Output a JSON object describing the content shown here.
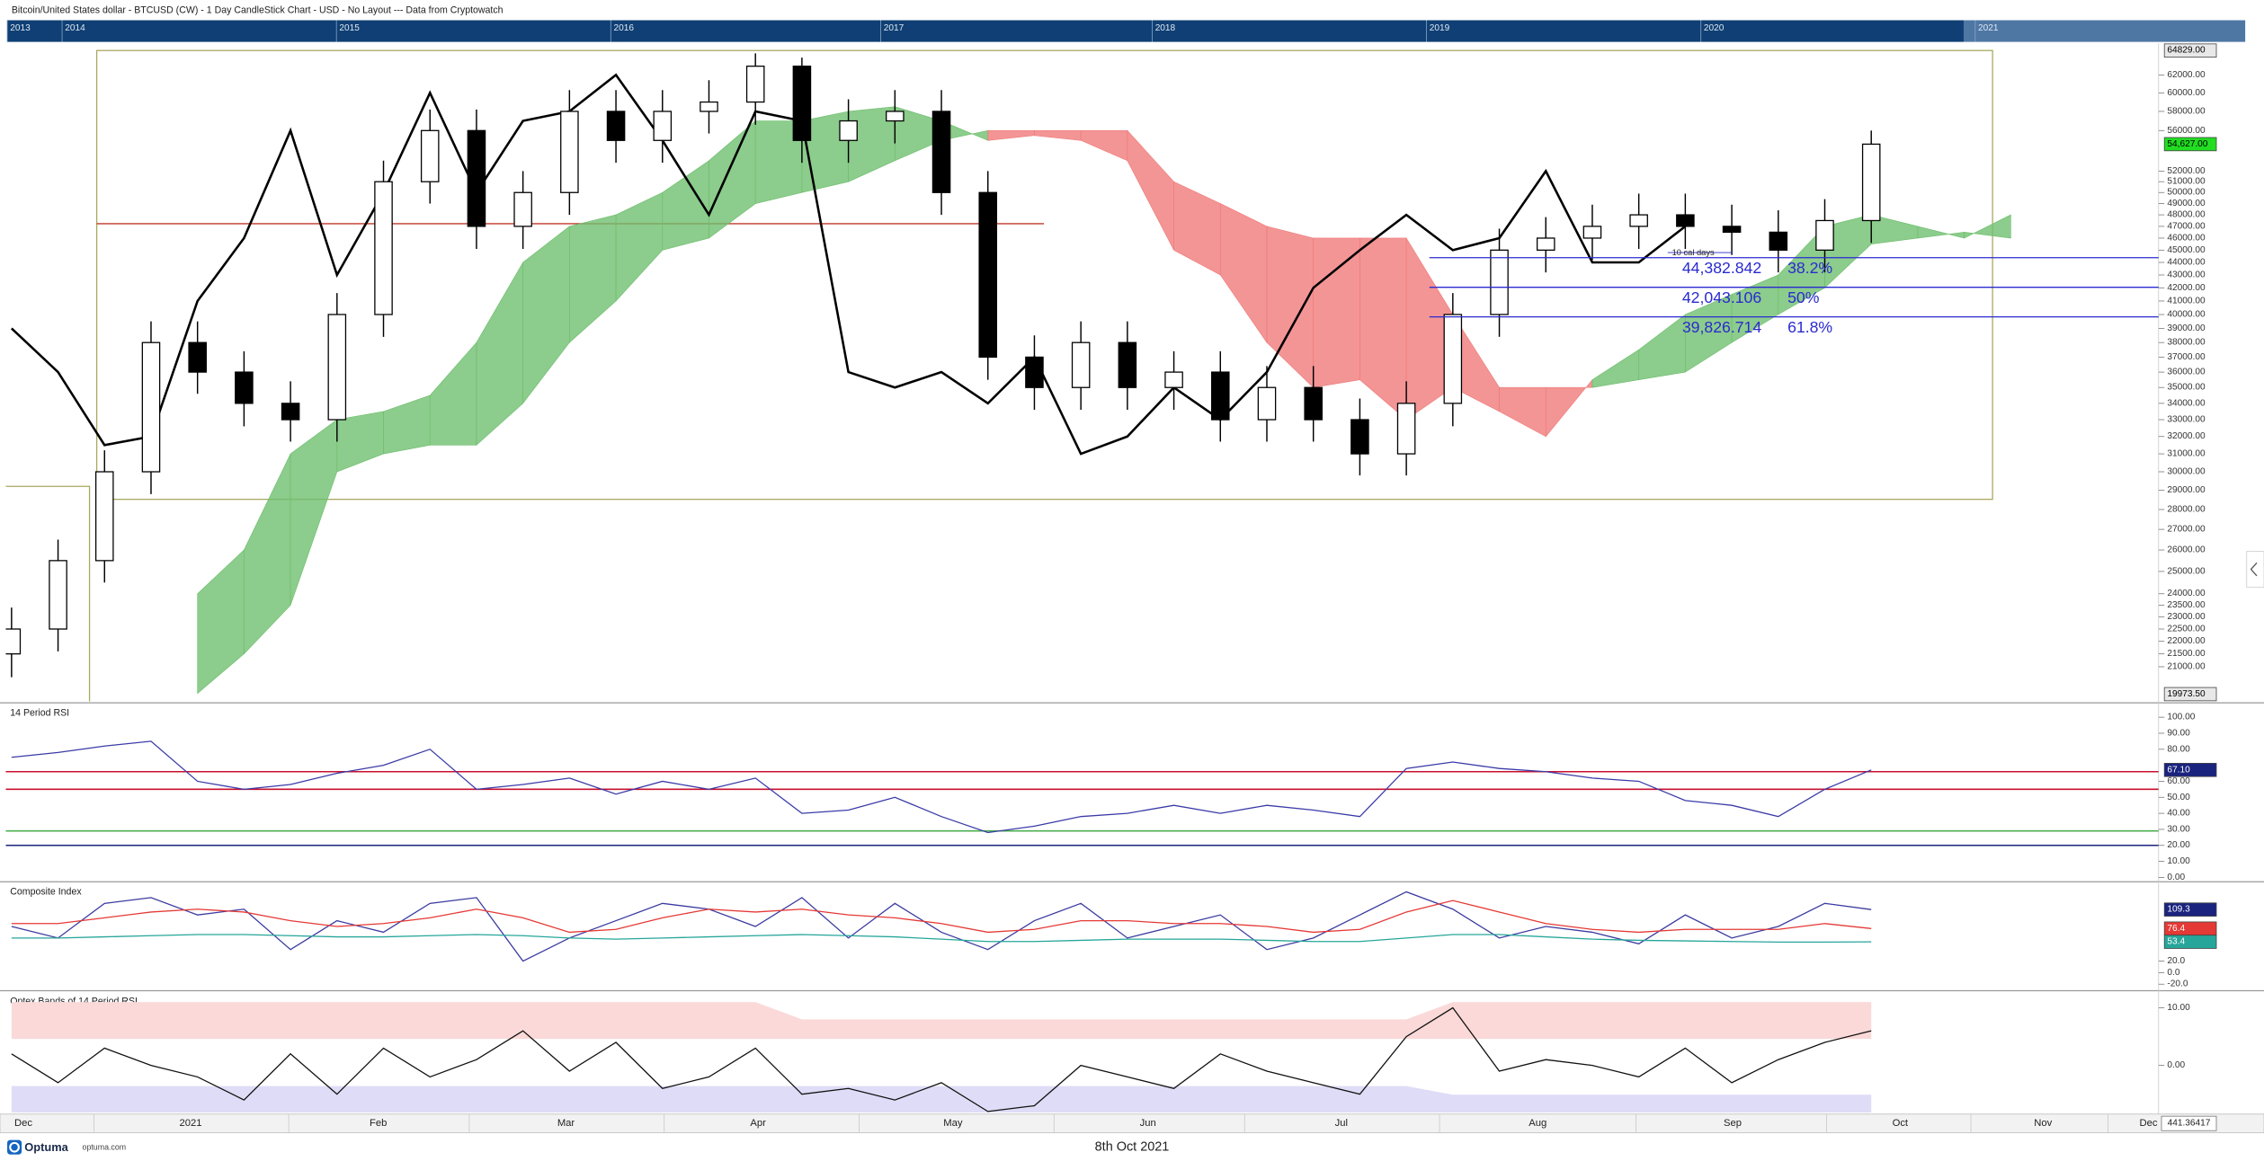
{
  "header": {
    "title": "Bitcoin/United States dollar - BTCUSD (CW) - 1 Day CandleStick Chart - USD - No Layout --- Data from Cryptowatch",
    "navigator_years": [
      "2013",
      "2014",
      "2015",
      "2016",
      "2017",
      "2018",
      "2019",
      "2020",
      "2021"
    ]
  },
  "chart_data": [
    {
      "type": "candlestick",
      "log_scale": true,
      "grid": false,
      "ylim": [
        19973.5,
        64829
      ],
      "yticks": [
        {
          "value": 62000,
          "label": "62000.00"
        },
        {
          "value": 60000,
          "label": "60000.00"
        },
        {
          "value": 58000,
          "label": "58000.00"
        },
        {
          "value": 56000,
          "label": "56000.00"
        },
        {
          "value": 52000,
          "label": "52000.00"
        },
        {
          "value": 51000,
          "label": "51000.00"
        },
        {
          "value": 50000,
          "label": "50000.00"
        },
        {
          "value": 49000,
          "label": "49000.00"
        },
        {
          "value": 48000,
          "label": "48000.00"
        },
        {
          "value": 47000,
          "label": "47000.00"
        },
        {
          "value": 46000,
          "label": "46000.00"
        },
        {
          "value": 45000,
          "label": "45000.00"
        },
        {
          "value": 44000,
          "label": "44000.00"
        },
        {
          "value": 43000,
          "label": "43000.00"
        },
        {
          "value": 42000,
          "label": "42000.00"
        },
        {
          "value": 41000,
          "label": "41000.00"
        },
        {
          "value": 40000,
          "label": "40000.00"
        },
        {
          "value": 39000,
          "label": "39000.00"
        },
        {
          "value": 38000,
          "label": "38000.00"
        },
        {
          "value": 37000,
          "label": "37000.00"
        },
        {
          "value": 36000,
          "label": "36000.00"
        },
        {
          "value": 35000,
          "label": "35000.00"
        },
        {
          "value": 34000,
          "label": "34000.00"
        },
        {
          "value": 33000,
          "label": "33000.00"
        },
        {
          "value": 32000,
          "label": "32000.00"
        },
        {
          "value": 31000,
          "label": "31000.00"
        },
        {
          "value": 30000,
          "label": "30000.00"
        },
        {
          "value": 29000,
          "label": "29000.00"
        },
        {
          "value": 28000,
          "label": "28000.00"
        },
        {
          "value": 27000,
          "label": "27000.00"
        },
        {
          "value": 26000,
          "label": "26000.00"
        },
        {
          "value": 25000,
          "label": "25000.00"
        },
        {
          "value": 24000,
          "label": "24000.00"
        },
        {
          "value": 23500,
          "label": "23500.00"
        },
        {
          "value": 23000,
          "label": "23000.00"
        },
        {
          "value": 22500,
          "label": "22500.00"
        },
        {
          "value": 22000,
          "label": "22000.00"
        },
        {
          "value": 21500,
          "label": "21500.00"
        },
        {
          "value": 21000,
          "label": "21000.00"
        }
      ],
      "price_labels": [
        {
          "value": 64829,
          "label": "64829.00",
          "color": "#e8e8e8",
          "text_color": "#000000"
        },
        {
          "value": 54627,
          "label": "54,627.00",
          "color": "#22dd22",
          "text_color": "#000000"
        },
        {
          "value": 19973.5,
          "label": "19973.50",
          "color": "#e8e8e8",
          "text_color": "#000000"
        }
      ],
      "open": [
        21500,
        22500,
        25500,
        30000,
        38000,
        36000,
        34000,
        33000,
        40000,
        51000,
        56000,
        47000,
        50000,
        58000,
        55000,
        58000,
        59000,
        63000,
        55000,
        57000,
        58000,
        50000,
        37000,
        35000,
        38000,
        35000,
        36000,
        33000,
        35000,
        33000,
        31000,
        34000,
        40000,
        45000,
        46000,
        47000,
        48000,
        47000,
        46500,
        45000,
        47500
      ],
      "high": [
        23400,
        26500,
        31200,
        39500,
        39500,
        37400,
        35400,
        41600,
        53000,
        58200,
        58200,
        52000,
        60300,
        60300,
        60300,
        61400,
        64500,
        64000,
        59300,
        60300,
        60300,
        52000,
        38500,
        39500,
        39500,
        37400,
        37400,
        36400,
        36400,
        34300,
        35400,
        41600,
        46800,
        47800,
        48900,
        49900,
        49900,
        48900,
        48400,
        49400,
        56000
      ],
      "low": [
        20600,
        21600,
        24500,
        28800,
        34600,
        32600,
        31700,
        31700,
        38400,
        49000,
        45100,
        45100,
        48000,
        52800,
        52800,
        55700,
        56600,
        52800,
        52800,
        54700,
        48000,
        35500,
        33600,
        33600,
        33600,
        33600,
        31700,
        31700,
        31700,
        29800,
        29800,
        32600,
        38400,
        43200,
        44200,
        45100,
        45100,
        44600,
        43200,
        43200,
        45600
      ],
      "close": [
        22500,
        25500,
        30000,
        38000,
        36000,
        34000,
        33000,
        40000,
        51000,
        56000,
        47000,
        50000,
        58000,
        55000,
        58000,
        59000,
        63000,
        55000,
        57000,
        58000,
        50000,
        37000,
        35000,
        38000,
        35000,
        36000,
        33000,
        35000,
        33000,
        31000,
        34000,
        40000,
        45000,
        46000,
        47000,
        48000,
        47000,
        46500,
        45000,
        47500,
        54627
      ],
      "up_color": "#ffffff",
      "down_color": "#000000",
      "lagging_line": {
        "color": "#000000",
        "values": [
          39000,
          36000,
          31500,
          32000,
          41000,
          46000,
          56000,
          43000,
          50000,
          60000,
          50000,
          57000,
          58000,
          62000,
          55000,
          48000,
          58000,
          57000,
          36000,
          35000,
          36000,
          34000,
          37000,
          31000,
          32000,
          35000,
          33000,
          36000,
          42000,
          45000,
          48000,
          45000,
          46000,
          52000,
          44000,
          44000,
          47000
        ]
      },
      "cloud": {
        "up_color": "#6fbf6f",
        "down_color": "#f07a7a",
        "span_a": [
          null,
          null,
          null,
          null,
          24000,
          26000,
          31000,
          33000,
          33500,
          34500,
          38000,
          44000,
          47000,
          48000,
          50000,
          53000,
          57000,
          57000,
          58000,
          58500,
          57000,
          55000,
          55500,
          55000,
          53000,
          45000,
          43000,
          38000,
          35000,
          35500,
          33000,
          35000,
          33500,
          32000,
          35500,
          37500,
          40000,
          41500,
          43000,
          47000,
          48000,
          47000,
          46000,
          48000
        ],
        "span_b": [
          null,
          null,
          null,
          null,
          20000,
          21500,
          23500,
          30000,
          31000,
          31500,
          31500,
          34000,
          38000,
          41000,
          45000,
          46000,
          49000,
          50000,
          51000,
          53000,
          55000,
          56000,
          56000,
          56000,
          56000,
          51000,
          49000,
          47000,
          46000,
          46000,
          46000,
          40000,
          35000,
          35000,
          35000,
          35500,
          36000,
          38000,
          40000,
          42000,
          45500,
          46000,
          46500,
          46000
        ]
      },
      "fib_levels": [
        {
          "value": 44382.842,
          "label": "44,382.842",
          "ratio": "38.2%"
        },
        {
          "value": 42043.106,
          "label": "42,043.106",
          "ratio": "50%"
        },
        {
          "value": 39826.714,
          "label": "39,826.714",
          "ratio": "61.8%"
        }
      ],
      "fib_color": "#2a2ad0",
      "annotation": "10 cal days"
    },
    {
      "type": "line",
      "title": "14 Period RSI",
      "grid": false,
      "ylim": [
        -1.8,
        108.1
      ],
      "yticks": [
        {
          "value": 100,
          "label": "100.00"
        },
        {
          "value": 90,
          "label": "90.00"
        },
        {
          "value": 80,
          "label": "80.00"
        },
        {
          "value": 60,
          "label": "60.00"
        },
        {
          "value": 50,
          "label": "50.00"
        },
        {
          "value": 40,
          "label": "40.00"
        },
        {
          "value": 30,
          "label": "30.00"
        },
        {
          "value": 20,
          "label": "20.00"
        },
        {
          "value": 10,
          "label": "10.00"
        },
        {
          "value": 0,
          "label": "0.00"
        }
      ],
      "levels": [
        {
          "value": 66,
          "color": "#c8102e"
        },
        {
          "value": 55,
          "color": "#c8102e"
        },
        {
          "value": 29,
          "color": "#4caf50"
        },
        {
          "value": 20,
          "color": "#1a237e"
        }
      ],
      "series": [
        {
          "color": "#3b3ba8",
          "values": [
            75,
            78,
            82,
            85,
            60,
            55,
            58,
            65,
            70,
            80,
            55,
            58,
            62,
            52,
            60,
            55,
            62,
            40,
            42,
            50,
            38,
            28,
            32,
            38,
            40,
            45,
            40,
            45,
            42,
            38,
            68,
            72,
            68,
            66,
            62,
            60,
            48,
            45,
            38,
            55,
            67.1
          ]
        }
      ],
      "price_labels": [
        {
          "value": 67.1,
          "label": "67.10",
          "color": "#1a237e",
          "text_color": "#ffffff"
        }
      ]
    },
    {
      "type": "line",
      "title": "Composite Index",
      "grid": false,
      "ylim": [
        -27.5,
        155
      ],
      "yticks": [
        {
          "value": 20,
          "label": "20.0"
        },
        {
          "value": 0,
          "label": "0.0"
        },
        {
          "value": -20,
          "label": "-20.0"
        }
      ],
      "series": [
        {
          "color": "#3a3aa0",
          "values": [
            80,
            60,
            120,
            130,
            100,
            110,
            40,
            90,
            70,
            120,
            130,
            20,
            60,
            90,
            120,
            110,
            80,
            130,
            60,
            120,
            70,
            40,
            90,
            120,
            60,
            80,
            100,
            40,
            60,
            100,
            140,
            110,
            60,
            80,
            70,
            50,
            100,
            60,
            80,
            120,
            109.3
          ]
        },
        {
          "color": "#e53935",
          "values": [
            85,
            85,
            95,
            105,
            110,
            105,
            90,
            80,
            85,
            95,
            110,
            95,
            70,
            75,
            95,
            110,
            105,
            110,
            100,
            95,
            85,
            70,
            75,
            90,
            90,
            85,
            85,
            80,
            70,
            75,
            105,
            125,
            105,
            85,
            75,
            70,
            75,
            75,
            75,
            85,
            76.4
          ]
        },
        {
          "color": "#26a69a",
          "values": [
            60,
            60,
            62,
            64,
            66,
            66,
            64,
            62,
            62,
            64,
            66,
            64,
            60,
            58,
            60,
            62,
            64,
            66,
            64,
            62,
            58,
            54,
            54,
            56,
            58,
            58,
            58,
            56,
            54,
            54,
            60,
            66,
            66,
            62,
            58,
            56,
            55,
            54,
            53,
            53,
            53.4
          ]
        }
      ],
      "price_labels": [
        {
          "value": 109.3,
          "color": "#1a237e",
          "text_color": "#ffffff"
        },
        {
          "value": 76.4,
          "color": "#e53935",
          "text_color": "#ffffff"
        },
        {
          "value": 53.4,
          "color": "#26a69a",
          "text_color": "#ffffff"
        }
      ]
    },
    {
      "type": "line",
      "title": "Optex Bands of 14 Period RSI",
      "grid": false,
      "ylim": [
        -8.2,
        12.6
      ],
      "yticks": [
        {
          "value": 10,
          "label": "10.00"
        },
        {
          "value": 0,
          "label": "0.00"
        }
      ],
      "bands": [
        {
          "color": "#fbd9d9",
          "upper": [
            11,
            11,
            11,
            11,
            11,
            11,
            11,
            11,
            11,
            11,
            11,
            11,
            11,
            11,
            11,
            11,
            11,
            8,
            8,
            8,
            8,
            8,
            8,
            8,
            8,
            8,
            8,
            8,
            8,
            8,
            8,
            11,
            11,
            11,
            11,
            11,
            11,
            11,
            11,
            11,
            11
          ],
          "lower": [
            4.6,
            4.6,
            4.6,
            4.6,
            4.6,
            4.6,
            4.6,
            4.6,
            4.6,
            4.6,
            4.6,
            4.6,
            4.6,
            4.6,
            4.6,
            4.6,
            4.6,
            4.6,
            4.6,
            4.6,
            4.6,
            4.6,
            4.6,
            4.6,
            4.6,
            4.6,
            4.6,
            4.6,
            4.6,
            4.6,
            4.6,
            4.6,
            4.6,
            4.6,
            4.6,
            4.6,
            4.6,
            4.6,
            4.6,
            4.6,
            4.6
          ]
        },
        {
          "color": "#dedcf6",
          "upper": [
            -3.6,
            -3.6,
            -3.6,
            -3.6,
            -3.6,
            -3.6,
            -3.6,
            -3.6,
            -3.6,
            -3.6,
            -3.6,
            -3.6,
            -3.6,
            -3.6,
            -3.6,
            -3.6,
            -3.6,
            -3.6,
            -3.6,
            -3.6,
            -3.6,
            -3.6,
            -3.6,
            -3.6,
            -3.6,
            -3.6,
            -3.6,
            -3.6,
            -3.6,
            -3.6,
            -3.6,
            -5.1,
            -5.1,
            -5.1,
            -5.1,
            -5.1,
            -5.1,
            -5.1,
            -5.1,
            -5.1,
            -5.1
          ],
          "lower": [
            -8.2,
            -8.2,
            -8.2,
            -8.2,
            -8.2,
            -8.2,
            -8.2,
            -8.2,
            -8.2,
            -8.2,
            -8.2,
            -8.2,
            -8.2,
            -8.2,
            -8.2,
            -8.2,
            -8.2,
            -8.2,
            -8.2,
            -8.2,
            -8.2,
            -8.2,
            -8.2,
            -8.2,
            -8.2,
            -8.2,
            -8.2,
            -8.2,
            -8.2,
            -8.2,
            -8.2,
            -8.2,
            -8.2,
            -8.2,
            -8.2,
            -8.2,
            -8.2,
            -8.2,
            -8.2,
            -8.2,
            -8.2
          ]
        }
      ],
      "series": [
        {
          "color": "#111111",
          "values": [
            2,
            -3,
            3,
            0,
            -2,
            -6,
            2,
            -5,
            3,
            -2,
            1,
            6,
            -1,
            4,
            -4,
            -2,
            3,
            -5,
            -4,
            -6,
            -3,
            -8,
            -7,
            0,
            -2,
            -4,
            2,
            -1,
            -3,
            -5,
            5,
            10,
            -1,
            1,
            0,
            -2,
            3,
            -3,
            1,
            4,
            6
          ]
        }
      ]
    }
  ],
  "x_axis": {
    "labels": [
      "Dec",
      "2021",
      "Feb",
      "Mar",
      "Apr",
      "May",
      "Jun",
      "Jul",
      "Aug",
      "Sep",
      "Oct",
      "Nov",
      "Dec"
    ],
    "cursor_value": "441.36417"
  },
  "footer": {
    "logo": "Optuma",
    "site": "optuma.com",
    "date": "8th Oct 2021"
  }
}
